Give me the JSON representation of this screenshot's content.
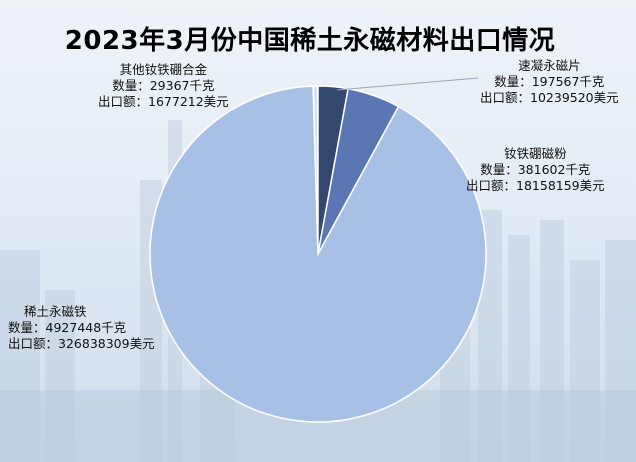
{
  "chart_data": {
    "type": "pie",
    "title": "2023年3月份中国稀土永磁材料出口情况",
    "quantity_prefix": "数量：",
    "value_prefix": "出口额：",
    "slices": [
      {
        "name": "稀土永磁铁",
        "quantity": "4927448千克",
        "value_label": "326838309美元",
        "value": 326838309,
        "color": "#a9c0e6"
      },
      {
        "name": "其他钕铁硼合金",
        "quantity": "29367千克",
        "value_label": "1677212美元",
        "value": 1677212,
        "color": "#d6e2f2"
      },
      {
        "name": "速凝永磁片",
        "quantity": "197567千克",
        "value_label": "10239520美元",
        "value": 10239520,
        "color": "#34486f"
      },
      {
        "name": "钕铁硼磁粉",
        "quantity": "381602千克",
        "value_label": "18158159美元",
        "value": 18158159,
        "color": "#5a77b4"
      }
    ]
  }
}
